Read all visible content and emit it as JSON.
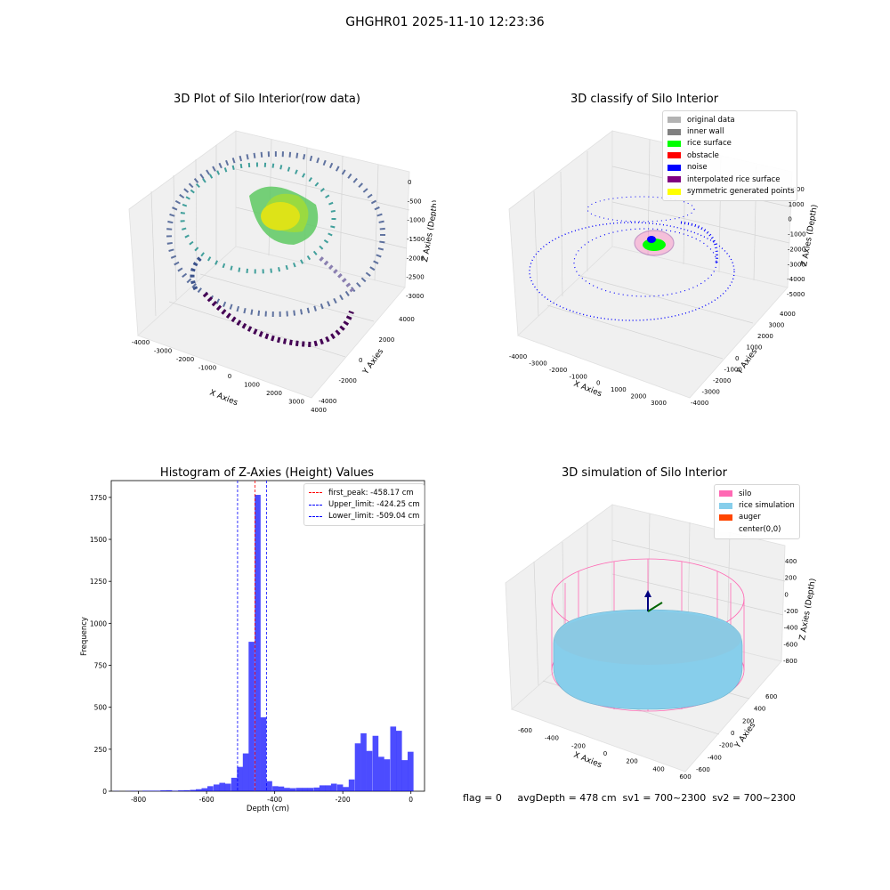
{
  "suptitle": "GHGHR01 2025-11-10 12:23:36",
  "footer": "flag = 0     avgDepth = 478 cm  sv1 = 700~2300  sv2 = 700~2300",
  "plots": {
    "raw": {
      "title": "3D Plot of Silo Interior(row data)",
      "xlabel": "X Axies",
      "ylabel": "Y Axies",
      "zlabel": "Z Axies (Depth)",
      "xticks": [
        "-4000",
        "-3000",
        "-2000",
        "-1000",
        "0",
        "1000",
        "2000",
        "3000",
        "4000"
      ],
      "yticks": [
        "-4000",
        "-2000",
        "0",
        "2000",
        "4000"
      ],
      "zticks": [
        "0",
        "-500",
        "-1000",
        "-1500",
        "-2000",
        "-2500",
        "-3000"
      ]
    },
    "classify": {
      "title": "3D classify of Silo Interior",
      "xlabel": "X Axies",
      "ylabel": "Y Axies",
      "zlabel": "Z Axies (Depth)",
      "xticks": [
        "-4000",
        "-3000",
        "-2000",
        "-1000",
        "0",
        "1000",
        "2000",
        "3000"
      ],
      "yticks": [
        "-4000",
        "-3000",
        "-2000",
        "-1000",
        "0",
        "1000",
        "2000",
        "3000",
        "4000"
      ],
      "zticks": [
        "2000",
        "1000",
        "0",
        "-1000",
        "-2000",
        "-3000",
        "-4000",
        "-5000"
      ],
      "legend": [
        {
          "label": "original data",
          "color": "#b3b3b3"
        },
        {
          "label": "inner wall",
          "color": "#808080"
        },
        {
          "label": "rice surface",
          "color": "#00ff00"
        },
        {
          "label": "obstacle",
          "color": "#ff0000"
        },
        {
          "label": "noise",
          "color": "#0000ff"
        },
        {
          "label": "interpolated rice surface",
          "color": "#800080"
        },
        {
          "label": "symmetric generated points",
          "color": "#ffff00"
        }
      ]
    },
    "simulation": {
      "title": "3D simulation of Silo Interior",
      "xlabel": "X Axies",
      "ylabel": "Y Axies",
      "zlabel": "Z Axies (Depth)",
      "xticks": [
        "-600",
        "-400",
        "-200",
        "0",
        "200",
        "400",
        "600"
      ],
      "yticks": [
        "-600",
        "-400",
        "-200",
        "0",
        "200",
        "400",
        "600"
      ],
      "zticks": [
        "400",
        "200",
        "0",
        "-200",
        "-400",
        "-600",
        "-800"
      ],
      "legend": [
        {
          "label": "silo",
          "color": "#ff69b4"
        },
        {
          "label": "rice simulation",
          "color": "#87ceeb"
        },
        {
          "label": "auger",
          "color": "#ff4500"
        },
        {
          "label": "center(0,0)",
          "color": "#ffffff"
        }
      ]
    }
  },
  "chart_data": {
    "type": "bar",
    "title": "Histogram of Z-Axies (Height) Values",
    "xlabel": "Depth (cm)",
    "ylabel": "Frequency",
    "xlim": [
      -880,
      40
    ],
    "ylim": [
      0,
      1850
    ],
    "xticks": [
      -800,
      -600,
      -400,
      -200,
      0
    ],
    "yticks": [
      0,
      250,
      500,
      750,
      1000,
      1250,
      1500,
      1750
    ],
    "bar_color": "#0000ff",
    "bar_width": 17.3,
    "bins": [
      {
        "x": -865,
        "v": 1
      },
      {
        "x": -848,
        "v": 0
      },
      {
        "x": -830,
        "v": 1
      },
      {
        "x": -813,
        "v": 2
      },
      {
        "x": -796,
        "v": 1
      },
      {
        "x": -779,
        "v": 3
      },
      {
        "x": -761,
        "v": 3
      },
      {
        "x": -744,
        "v": 3
      },
      {
        "x": -727,
        "v": 5
      },
      {
        "x": -710,
        "v": 6
      },
      {
        "x": -692,
        "v": 3
      },
      {
        "x": -675,
        "v": 5
      },
      {
        "x": -658,
        "v": 6
      },
      {
        "x": -640,
        "v": 8
      },
      {
        "x": -623,
        "v": 12
      },
      {
        "x": -606,
        "v": 18
      },
      {
        "x": -589,
        "v": 30
      },
      {
        "x": -571,
        "v": 40
      },
      {
        "x": -554,
        "v": 50
      },
      {
        "x": -537,
        "v": 45
      },
      {
        "x": -519,
        "v": 80
      },
      {
        "x": -502,
        "v": 145
      },
      {
        "x": -485,
        "v": 225
      },
      {
        "x": -468,
        "v": 890
      },
      {
        "x": -450,
        "v": 1765
      },
      {
        "x": -433,
        "v": 440
      },
      {
        "x": -416,
        "v": 60
      },
      {
        "x": -398,
        "v": 30
      },
      {
        "x": -381,
        "v": 28
      },
      {
        "x": -364,
        "v": 20
      },
      {
        "x": -347,
        "v": 18
      },
      {
        "x": -329,
        "v": 20
      },
      {
        "x": -312,
        "v": 20
      },
      {
        "x": -295,
        "v": 20
      },
      {
        "x": -277,
        "v": 22
      },
      {
        "x": -260,
        "v": 35
      },
      {
        "x": -243,
        "v": 35
      },
      {
        "x": -226,
        "v": 45
      },
      {
        "x": -208,
        "v": 40
      },
      {
        "x": -191,
        "v": 25
      },
      {
        "x": -174,
        "v": 70
      },
      {
        "x": -156,
        "v": 285
      },
      {
        "x": -139,
        "v": 345
      },
      {
        "x": -122,
        "v": 240
      },
      {
        "x": -104,
        "v": 330
      },
      {
        "x": -87,
        "v": 205
      },
      {
        "x": -70,
        "v": 190
      },
      {
        "x": -52,
        "v": 385
      },
      {
        "x": -35,
        "v": 360
      },
      {
        "x": -18,
        "v": 185
      },
      {
        "x": -1,
        "v": 235
      }
    ],
    "vlines": [
      {
        "label": "first_peak: -458.17 cm",
        "x": -458.17,
        "color": "#ff0000"
      },
      {
        "label": "Upper_limit: -424.25 cm",
        "x": -424.25,
        "color": "#0000ff"
      },
      {
        "label": "Lower_limit: -509.04 cm",
        "x": -509.04,
        "color": "#0000ff"
      }
    ]
  }
}
